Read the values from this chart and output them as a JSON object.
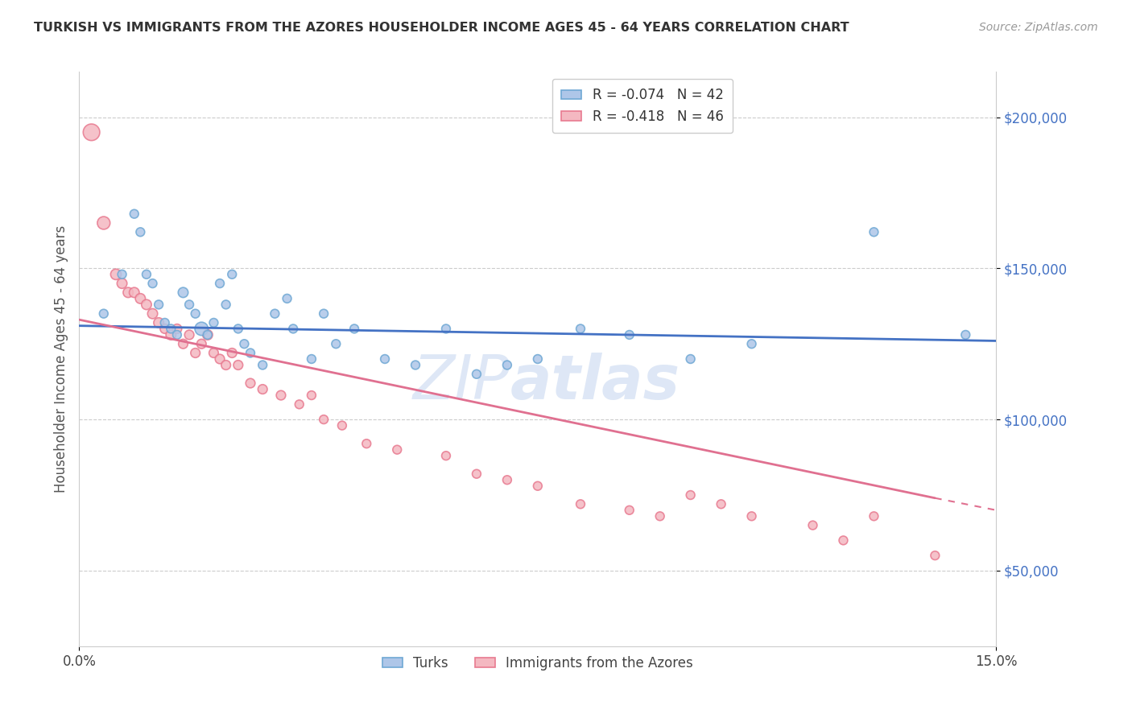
{
  "title": "TURKISH VS IMMIGRANTS FROM THE AZORES HOUSEHOLDER INCOME AGES 45 - 64 YEARS CORRELATION CHART",
  "source": "Source: ZipAtlas.com",
  "ylabel": "Householder Income Ages 45 - 64 years",
  "xlim": [
    0.0,
    0.15
  ],
  "ylim": [
    25000,
    215000
  ],
  "yticks": [
    50000,
    100000,
    150000,
    200000
  ],
  "yticklabels": [
    "$50,000",
    "$100,000",
    "$150,000",
    "$200,000"
  ],
  "turks_color": "#aec6e8",
  "azores_color": "#f4b8c1",
  "turks_edge": "#6fa8d4",
  "azores_edge": "#e87a90",
  "trend_blue": "#4472c4",
  "trend_pink": "#e07090",
  "legend_R_turks": "R = -0.074",
  "legend_N_turks": "N = 42",
  "legend_R_azores": "R = -0.418",
  "legend_N_azores": "N = 46",
  "turks_x": [
    0.004,
    0.007,
    0.009,
    0.01,
    0.011,
    0.012,
    0.013,
    0.014,
    0.015,
    0.016,
    0.017,
    0.018,
    0.019,
    0.02,
    0.021,
    0.022,
    0.023,
    0.024,
    0.025,
    0.026,
    0.027,
    0.028,
    0.03,
    0.032,
    0.034,
    0.035,
    0.038,
    0.04,
    0.042,
    0.045,
    0.05,
    0.055,
    0.06,
    0.065,
    0.07,
    0.075,
    0.082,
    0.09,
    0.1,
    0.11,
    0.13,
    0.145
  ],
  "turks_y": [
    135000,
    148000,
    168000,
    162000,
    148000,
    145000,
    138000,
    132000,
    130000,
    128000,
    142000,
    138000,
    135000,
    130000,
    128000,
    132000,
    145000,
    138000,
    148000,
    130000,
    125000,
    122000,
    118000,
    135000,
    140000,
    130000,
    120000,
    135000,
    125000,
    130000,
    120000,
    118000,
    130000,
    115000,
    118000,
    120000,
    130000,
    128000,
    120000,
    125000,
    162000,
    128000
  ],
  "turks_size": [
    60,
    60,
    60,
    60,
    60,
    60,
    60,
    60,
    60,
    60,
    80,
    60,
    60,
    140,
    60,
    60,
    60,
    60,
    60,
    60,
    60,
    60,
    60,
    60,
    60,
    60,
    60,
    60,
    60,
    60,
    60,
    60,
    60,
    60,
    60,
    60,
    60,
    60,
    60,
    60,
    60,
    60
  ],
  "azores_x": [
    0.002,
    0.004,
    0.006,
    0.007,
    0.008,
    0.009,
    0.01,
    0.011,
    0.012,
    0.013,
    0.014,
    0.015,
    0.016,
    0.017,
    0.018,
    0.019,
    0.02,
    0.021,
    0.022,
    0.023,
    0.024,
    0.025,
    0.026,
    0.028,
    0.03,
    0.033,
    0.036,
    0.038,
    0.04,
    0.043,
    0.047,
    0.052,
    0.06,
    0.065,
    0.07,
    0.075,
    0.082,
    0.09,
    0.095,
    0.1,
    0.105,
    0.11,
    0.12,
    0.125,
    0.13,
    0.14
  ],
  "azores_y": [
    195000,
    165000,
    148000,
    145000,
    142000,
    142000,
    140000,
    138000,
    135000,
    132000,
    130000,
    128000,
    130000,
    125000,
    128000,
    122000,
    125000,
    128000,
    122000,
    120000,
    118000,
    122000,
    118000,
    112000,
    110000,
    108000,
    105000,
    108000,
    100000,
    98000,
    92000,
    90000,
    88000,
    82000,
    80000,
    78000,
    72000,
    70000,
    68000,
    75000,
    72000,
    68000,
    65000,
    60000,
    68000,
    55000
  ],
  "azores_size": [
    220,
    130,
    90,
    80,
    80,
    80,
    80,
    80,
    80,
    80,
    70,
    80,
    70,
    70,
    70,
    70,
    70,
    80,
    70,
    70,
    70,
    70,
    70,
    70,
    70,
    70,
    60,
    60,
    60,
    60,
    60,
    60,
    60,
    60,
    60,
    60,
    60,
    60,
    60,
    60,
    60,
    60,
    60,
    60,
    60,
    60
  ],
  "trend_blue_x0": 0.0,
  "trend_blue_y0": 131000,
  "trend_blue_x1": 0.15,
  "trend_blue_y1": 126000,
  "trend_pink_x0": 0.0,
  "trend_pink_y0": 133000,
  "trend_pink_x1": 0.14,
  "trend_pink_y1": 74000,
  "trend_pink_dash_x0": 0.14,
  "trend_pink_dash_y0": 74000,
  "trend_pink_dash_x1": 0.15,
  "trend_pink_dash_y1": 70000
}
